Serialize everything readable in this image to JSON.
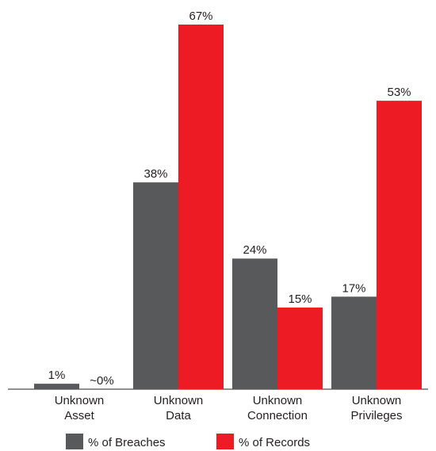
{
  "chart_data": {
    "type": "bar",
    "categories": [
      [
        "Unknown",
        "Asset"
      ],
      [
        "Unknown",
        "Data"
      ],
      [
        "Unknown",
        "Connection"
      ],
      [
        "Unknown",
        "Privileges"
      ]
    ],
    "series": [
      {
        "name": "% of Breaches",
        "color": "#58595b",
        "values": [
          1,
          38,
          24,
          17
        ],
        "labels": [
          "1%",
          "38%",
          "24%",
          "17%"
        ]
      },
      {
        "name": "% of Records",
        "color": "#ed1c24",
        "values": [
          0,
          67,
          15,
          53
        ],
        "labels": [
          "~0%",
          "67%",
          "15%",
          "53%"
        ]
      }
    ],
    "ylim": [
      0,
      67
    ],
    "grid": false,
    "legend_position": "bottom"
  }
}
